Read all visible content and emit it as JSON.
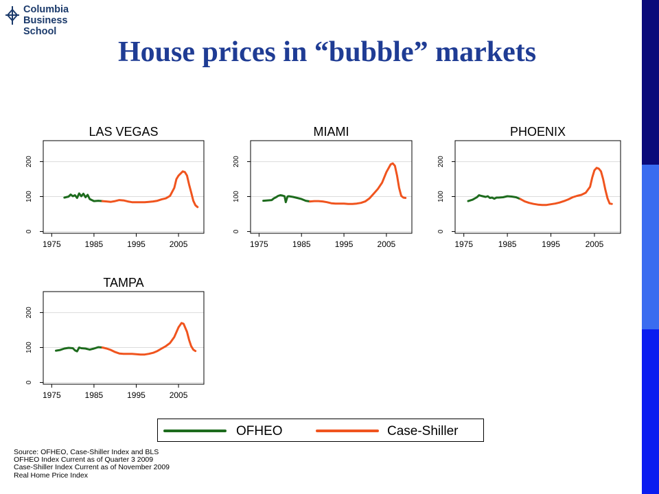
{
  "logo": {
    "line1": "Columbia",
    "line2": "Business",
    "line3": "School"
  },
  "slide_title": "House prices in “bubble” markets",
  "colors": {
    "title": "#1f3c94",
    "ofheo": "#1d6b1d",
    "case_shiller": "#f0541e",
    "bar_top": "#0a0a7a",
    "bar_mid": "#3a6cf0",
    "bar_bottom": "#0a1cf0"
  },
  "chart_data": [
    {
      "type": "line",
      "title": "LAS VEGAS",
      "xlim": [
        1973,
        2011
      ],
      "ylim": [
        -5,
        260
      ],
      "xticks": [
        1975,
        1985,
        1995,
        2005
      ],
      "yticks": [
        0,
        100,
        200
      ],
      "series": [
        {
          "name": "OFHEO",
          "color": "#1d6b1d",
          "points": [
            [
              1978,
              97
            ],
            [
              1979,
              100
            ],
            [
              1979.5,
              106
            ],
            [
              1980,
              101
            ],
            [
              1980.5,
              104
            ],
            [
              1981,
              96
            ],
            [
              1981.5,
              109
            ],
            [
              1982,
              101
            ],
            [
              1982.5,
              108
            ],
            [
              1983,
              98
            ],
            [
              1983.5,
              105
            ],
            [
              1984,
              93
            ],
            [
              1985,
              87
            ],
            [
              1986,
              88
            ],
            [
              1987,
              87
            ]
          ]
        },
        {
          "name": "Case-Shiller",
          "color": "#f0541e",
          "points": [
            [
              1987,
              87
            ],
            [
              1988,
              86
            ],
            [
              1989,
              85
            ],
            [
              1990,
              87
            ],
            [
              1991,
              90
            ],
            [
              1992,
              89
            ],
            [
              1993,
              86
            ],
            [
              1994,
              84
            ],
            [
              1995,
              84
            ],
            [
              1996,
              84
            ],
            [
              1997,
              84
            ],
            [
              1998,
              85
            ],
            [
              1999,
              86
            ],
            [
              2000,
              88
            ],
            [
              2001,
              92
            ],
            [
              2002,
              95
            ],
            [
              2003,
              102
            ],
            [
              2004,
              125
            ],
            [
              2004.5,
              150
            ],
            [
              2005,
              160
            ],
            [
              2005.5,
              166
            ],
            [
              2006,
              172
            ],
            [
              2006.5,
              170
            ],
            [
              2007,
              160
            ],
            [
              2007.5,
              135
            ],
            [
              2008,
              112
            ],
            [
              2008.5,
              88
            ],
            [
              2009,
              75
            ],
            [
              2009.5,
              70
            ]
          ]
        }
      ]
    },
    {
      "type": "line",
      "title": "MIAMI",
      "xlim": [
        1973,
        2011
      ],
      "ylim": [
        -5,
        260
      ],
      "xticks": [
        1975,
        1985,
        1995,
        2005
      ],
      "yticks": [
        0,
        100,
        200
      ],
      "series": [
        {
          "name": "OFHEO",
          "color": "#1d6b1d",
          "points": [
            [
              1976,
              88
            ],
            [
              1977,
              89
            ],
            [
              1978,
              90
            ],
            [
              1978.5,
              95
            ],
            [
              1979,
              98
            ],
            [
              1979.5,
              102
            ],
            [
              1980,
              104
            ],
            [
              1980.5,
              103
            ],
            [
              1981,
              101
            ],
            [
              1981.3,
              84
            ],
            [
              1981.7,
              100
            ],
            [
              1982,
              101
            ],
            [
              1983,
              99
            ],
            [
              1984,
              96
            ],
            [
              1985,
              93
            ],
            [
              1986,
              88
            ],
            [
              1987,
              86
            ]
          ]
        },
        {
          "name": "Case-Shiller",
          "color": "#f0541e",
          "points": [
            [
              1987,
              86
            ],
            [
              1988,
              87
            ],
            [
              1989,
              87
            ],
            [
              1990,
              86
            ],
            [
              1991,
              84
            ],
            [
              1992,
              81
            ],
            [
              1993,
              80
            ],
            [
              1994,
              80
            ],
            [
              1995,
              80
            ],
            [
              1996,
              79
            ],
            [
              1997,
              79
            ],
            [
              1998,
              80
            ],
            [
              1999,
              82
            ],
            [
              2000,
              86
            ],
            [
              2001,
              95
            ],
            [
              2002,
              108
            ],
            [
              2003,
              122
            ],
            [
              2004,
              140
            ],
            [
              2005,
              170
            ],
            [
              2006,
              192
            ],
            [
              2006.5,
              195
            ],
            [
              2007,
              188
            ],
            [
              2007.5,
              160
            ],
            [
              2008,
              125
            ],
            [
              2008.5,
              102
            ],
            [
              2009,
              97
            ],
            [
              2009.5,
              96
            ]
          ]
        }
      ]
    },
    {
      "type": "line",
      "title": "PHOENIX",
      "xlim": [
        1973,
        2011
      ],
      "ylim": [
        -5,
        260
      ],
      "xticks": [
        1975,
        1985,
        1995,
        2005
      ],
      "yticks": [
        0,
        100,
        200
      ],
      "series": [
        {
          "name": "OFHEO",
          "color": "#1d6b1d",
          "points": [
            [
              1976,
              87
            ],
            [
              1977,
              91
            ],
            [
              1978,
              98
            ],
            [
              1978.5,
              104
            ],
            [
              1979,
              102
            ],
            [
              1980,
              99
            ],
            [
              1980.5,
              101
            ],
            [
              1981,
              96
            ],
            [
              1981.5,
              97
            ],
            [
              1982,
              94
            ],
            [
              1982.5,
              97
            ],
            [
              1983,
              97
            ],
            [
              1984,
              98
            ],
            [
              1985,
              101
            ],
            [
              1986,
              100
            ],
            [
              1987,
              98
            ],
            [
              1988,
              93
            ]
          ]
        },
        {
          "name": "Case-Shiller",
          "color": "#f0541e",
          "points": [
            [
              1988,
              93
            ],
            [
              1989,
              86
            ],
            [
              1990,
              82
            ],
            [
              1991,
              79
            ],
            [
              1992,
              77
            ],
            [
              1993,
              76
            ],
            [
              1994,
              76
            ],
            [
              1995,
              78
            ],
            [
              1996,
              80
            ],
            [
              1997,
              83
            ],
            [
              1998,
              87
            ],
            [
              1999,
              92
            ],
            [
              2000,
              98
            ],
            [
              2001,
              102
            ],
            [
              2002,
              105
            ],
            [
              2003,
              111
            ],
            [
              2004,
              128
            ],
            [
              2004.5,
              155
            ],
            [
              2005,
              175
            ],
            [
              2005.5,
              182
            ],
            [
              2006,
              180
            ],
            [
              2006.5,
              172
            ],
            [
              2007,
              150
            ],
            [
              2007.5,
              120
            ],
            [
              2008,
              95
            ],
            [
              2008.5,
              80
            ],
            [
              2009,
              79
            ]
          ]
        }
      ]
    },
    {
      "type": "line",
      "title": "TAMPA",
      "xlim": [
        1973,
        2011
      ],
      "ylim": [
        -5,
        260
      ],
      "xticks": [
        1975,
        1985,
        1995,
        2005
      ],
      "yticks": [
        0,
        100,
        200
      ],
      "series": [
        {
          "name": "OFHEO",
          "color": "#1d6b1d",
          "points": [
            [
              1976,
              91
            ],
            [
              1977,
              93
            ],
            [
              1978,
              97
            ],
            [
              1979,
              99
            ],
            [
              1980,
              98
            ],
            [
              1980.5,
              92
            ],
            [
              1981,
              89
            ],
            [
              1981.5,
              100
            ],
            [
              1982,
              98
            ],
            [
              1983,
              97
            ],
            [
              1984,
              94
            ],
            [
              1985,
              97
            ],
            [
              1986,
              101
            ],
            [
              1987,
              100
            ]
          ]
        },
        {
          "name": "Case-Shiller",
          "color": "#f0541e",
          "points": [
            [
              1987,
              100
            ],
            [
              1988,
              97
            ],
            [
              1989,
              93
            ],
            [
              1990,
              87
            ],
            [
              1991,
              83
            ],
            [
              1992,
              82
            ],
            [
              1993,
              82
            ],
            [
              1994,
              82
            ],
            [
              1995,
              81
            ],
            [
              1996,
              80
            ],
            [
              1997,
              80
            ],
            [
              1998,
              82
            ],
            [
              1999,
              85
            ],
            [
              2000,
              90
            ],
            [
              2001,
              97
            ],
            [
              2002,
              104
            ],
            [
              2003,
              113
            ],
            [
              2004,
              130
            ],
            [
              2005,
              158
            ],
            [
              2005.7,
              170
            ],
            [
              2006.2,
              168
            ],
            [
              2007,
              145
            ],
            [
              2007.5,
              122
            ],
            [
              2008,
              104
            ],
            [
              2008.5,
              94
            ],
            [
              2009,
              90
            ]
          ]
        }
      ]
    }
  ],
  "legend": {
    "ofheo_label": "OFHEO",
    "case_shiller_label": "Case-Shiller"
  },
  "notes": [
    "Source: OFHEO, Case-Shiller Index and BLS",
    "OFHEO Index Current as of Quarter 3 2009",
    "Case-Shiller Index Current as of November 2009",
    "Real Home Price Index"
  ]
}
